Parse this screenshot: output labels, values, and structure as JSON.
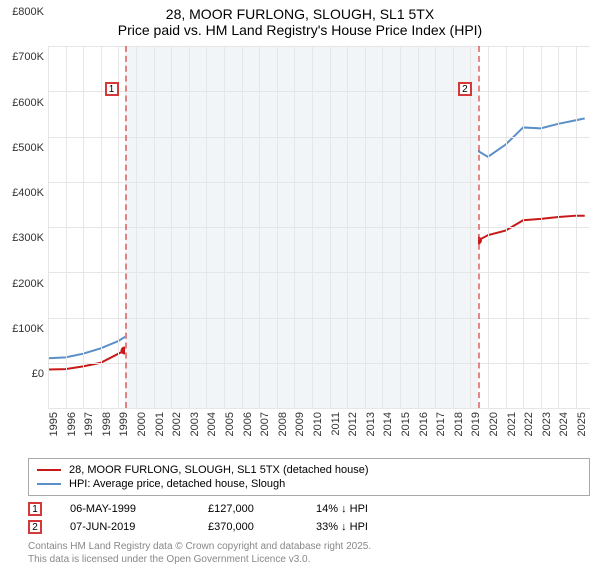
{
  "title": {
    "line1": "28, MOOR FURLONG, SLOUGH, SL1 5TX",
    "line2": "Price paid vs. HM Land Registry's House Price Index (HPI)"
  },
  "chart": {
    "type": "line",
    "background_color": "#ffffff",
    "shaded_band_color": "#f2f5f7",
    "grid_color": "#e6e6e6",
    "x": {
      "min": 1995,
      "max": 2025.8,
      "ticks": [
        1995,
        1996,
        1997,
        1998,
        1999,
        2000,
        2001,
        2002,
        2003,
        2004,
        2005,
        2006,
        2007,
        2008,
        2009,
        2010,
        2011,
        2012,
        2013,
        2014,
        2015,
        2016,
        2017,
        2018,
        2019,
        2020,
        2021,
        2022,
        2023,
        2024,
        2025
      ],
      "label_fontsize": 11,
      "rotation": -90
    },
    "y": {
      "min": 0,
      "max": 800000,
      "ticks": [
        0,
        100000,
        200000,
        300000,
        400000,
        500000,
        600000,
        700000,
        800000
      ],
      "tick_labels": [
        "£0",
        "£100K",
        "£200K",
        "£300K",
        "£400K",
        "£500K",
        "£600K",
        "£700K",
        "£800K"
      ],
      "label_fontsize": 11
    },
    "shaded_band": {
      "start": 1999.35,
      "end": 2019.43
    },
    "markers": [
      {
        "label": "1",
        "x": 1999.35,
        "y_box": 720000
      },
      {
        "label": "2",
        "x": 2019.43,
        "y_box": 720000
      }
    ],
    "series": [
      {
        "name": "price_paid",
        "label": "28, MOOR FURLONG, SLOUGH, SL1 5TX (detached house)",
        "color": "#c81919",
        "line_width": 2,
        "data": [
          [
            1995,
            85000
          ],
          [
            1996,
            86000
          ],
          [
            1997,
            92000
          ],
          [
            1998,
            100000
          ],
          [
            1999,
            120000
          ],
          [
            1999.35,
            127000
          ],
          [
            2000,
            148000
          ],
          [
            2001,
            168000
          ],
          [
            2002,
            195000
          ],
          [
            2003,
            218000
          ],
          [
            2004,
            240000
          ],
          [
            2005,
            248000
          ],
          [
            2006,
            262000
          ],
          [
            2007,
            295000
          ],
          [
            2007.7,
            310000
          ],
          [
            2008,
            302000
          ],
          [
            2008.5,
            262000
          ],
          [
            2009,
            258000
          ],
          [
            2010,
            278000
          ],
          [
            2011,
            275000
          ],
          [
            2012,
            278000
          ],
          [
            2013,
            290000
          ],
          [
            2014,
            320000
          ],
          [
            2015,
            360000
          ],
          [
            2016,
            420000
          ],
          [
            2017,
            465000
          ],
          [
            2018,
            500000
          ],
          [
            2019,
            508000
          ],
          [
            2019.43,
            370000
          ],
          [
            2020,
            382000
          ],
          [
            2021,
            392000
          ],
          [
            2022,
            415000
          ],
          [
            2023,
            418000
          ],
          [
            2024,
            422000
          ],
          [
            2025,
            425000
          ],
          [
            2025.5,
            425000
          ]
        ],
        "points": [
          {
            "x": 1999.35,
            "y": 127000
          },
          {
            "x": 2019.43,
            "y": 370000
          }
        ]
      },
      {
        "name": "hpi",
        "label": "HPI: Average price, detached house, Slough",
        "color": "#5b8fc7",
        "line_width": 2,
        "data": [
          [
            1995,
            110000
          ],
          [
            1996,
            112000
          ],
          [
            1997,
            120000
          ],
          [
            1998,
            132000
          ],
          [
            1999,
            148000
          ],
          [
            2000,
            172000
          ],
          [
            2001,
            195000
          ],
          [
            2002,
            228000
          ],
          [
            2003,
            255000
          ],
          [
            2004,
            278000
          ],
          [
            2005,
            285000
          ],
          [
            2006,
            300000
          ],
          [
            2007,
            335000
          ],
          [
            2007.7,
            350000
          ],
          [
            2008,
            340000
          ],
          [
            2008.5,
            298000
          ],
          [
            2009,
            295000
          ],
          [
            2010,
            318000
          ],
          [
            2011,
            315000
          ],
          [
            2012,
            320000
          ],
          [
            2013,
            335000
          ],
          [
            2014,
            370000
          ],
          [
            2015,
            415000
          ],
          [
            2016,
            484000
          ],
          [
            2017,
            532000
          ],
          [
            2018,
            570000
          ],
          [
            2019,
            578000
          ],
          [
            2020,
            555000
          ],
          [
            2021,
            582000
          ],
          [
            2022,
            620000
          ],
          [
            2023,
            618000
          ],
          [
            2024,
            628000
          ],
          [
            2025,
            636000
          ],
          [
            2025.5,
            640000
          ]
        ]
      }
    ]
  },
  "legend": {
    "items": [
      {
        "color": "#c81919",
        "label": "28, MOOR FURLONG, SLOUGH, SL1 5TX (detached house)"
      },
      {
        "color": "#5b8fc7",
        "label": "HPI: Average price, detached house, Slough"
      }
    ]
  },
  "transactions": [
    {
      "marker": "1",
      "date": "06-MAY-1999",
      "price": "£127,000",
      "delta": "14% ↓ HPI"
    },
    {
      "marker": "2",
      "date": "07-JUN-2019",
      "price": "£370,000",
      "delta": "33% ↓ HPI"
    }
  ],
  "footer": {
    "line1": "Contains HM Land Registry data © Crown copyright and database right 2025.",
    "line2": "This data is licensed under the Open Government Licence v3.0."
  }
}
